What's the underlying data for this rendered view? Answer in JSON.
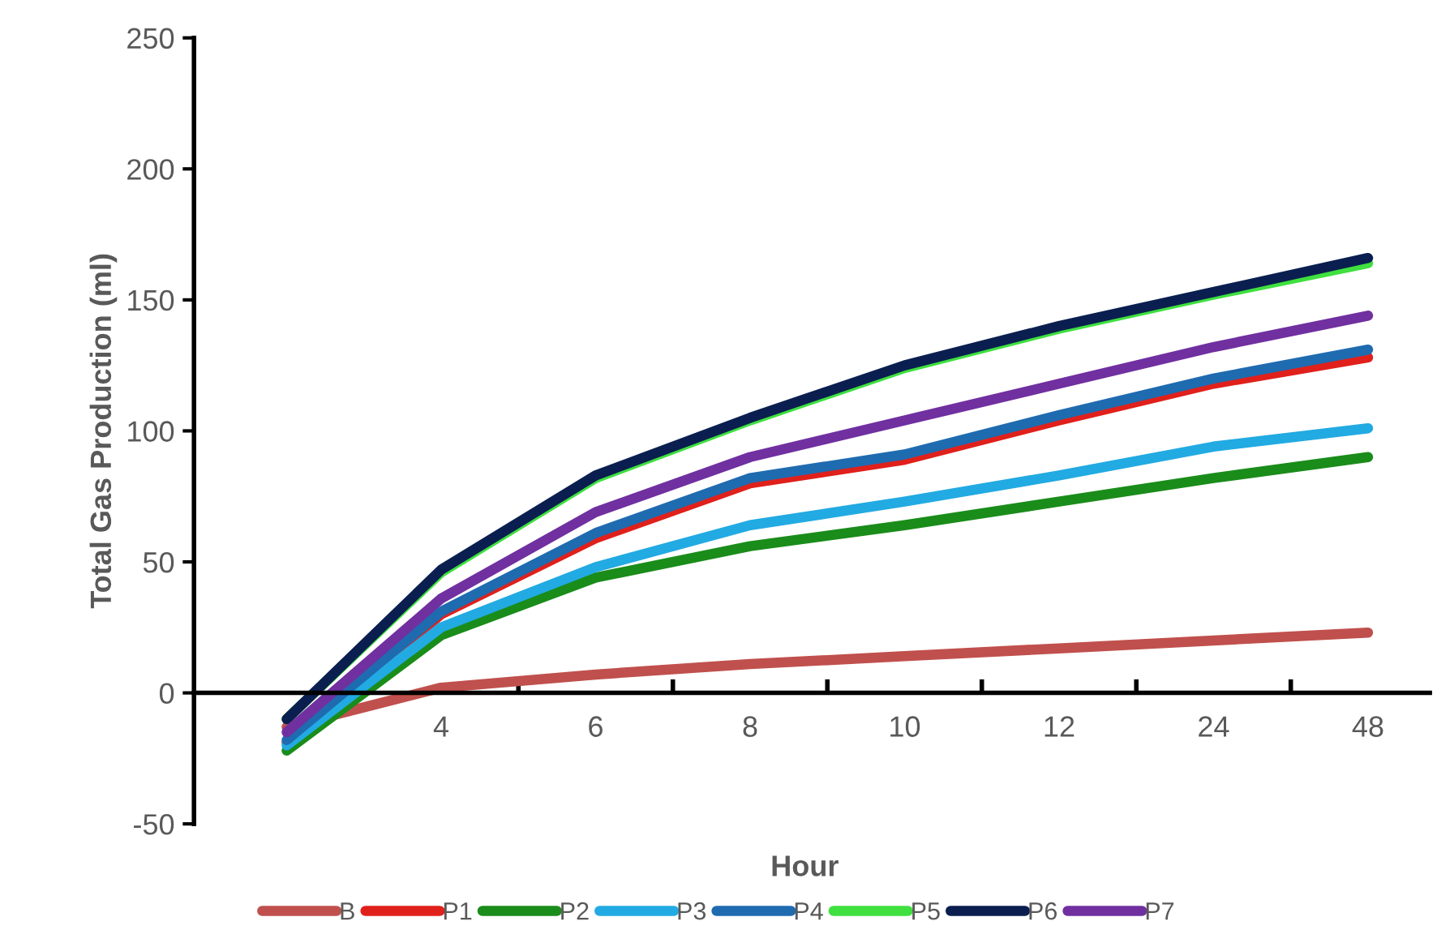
{
  "chart_data": {
    "type": "line",
    "xlabel": "Hour",
    "ylabel": "Total Gas Production (ml)",
    "categories": [
      null,
      "4",
      "6",
      "8",
      "10",
      "12",
      "24",
      "48"
    ],
    "ylim": [
      -50,
      250
    ],
    "yticks": [
      -50,
      0,
      50,
      100,
      150,
      200,
      250
    ],
    "grid": false,
    "legend": "bottom",
    "marker": "none",
    "line_style": "solid",
    "series": [
      {
        "name": "B",
        "color": "#c0504d",
        "values": [
          -13,
          2,
          7,
          11,
          14,
          17,
          20,
          23
        ]
      },
      {
        "name": "P1",
        "color": "#e0201b",
        "values": [
          -19,
          30,
          59,
          80,
          89,
          104,
          118,
          128
        ]
      },
      {
        "name": "P2",
        "color": "#1a8c1a",
        "values": [
          -22,
          22,
          44,
          56,
          64,
          73,
          82,
          90
        ]
      },
      {
        "name": "P3",
        "color": "#22aae2",
        "values": [
          -20,
          25,
          48,
          64,
          73,
          83,
          94,
          101
        ]
      },
      {
        "name": "P4",
        "color": "#1f6bb0",
        "values": [
          -18,
          31,
          61,
          82,
          91,
          106,
          120,
          131
        ]
      },
      {
        "name": "P5",
        "color": "#3fe03f",
        "values": [
          -10,
          46,
          82,
          104,
          124,
          139,
          152,
          164
        ]
      },
      {
        "name": "P6",
        "color": "#0a1f4f",
        "values": [
          -10,
          47,
          83,
          105,
          125,
          140,
          153,
          166
        ]
      },
      {
        "name": "P7",
        "color": "#7030a0",
        "values": [
          -15,
          36,
          69,
          90,
          104,
          118,
          132,
          144
        ]
      }
    ]
  }
}
